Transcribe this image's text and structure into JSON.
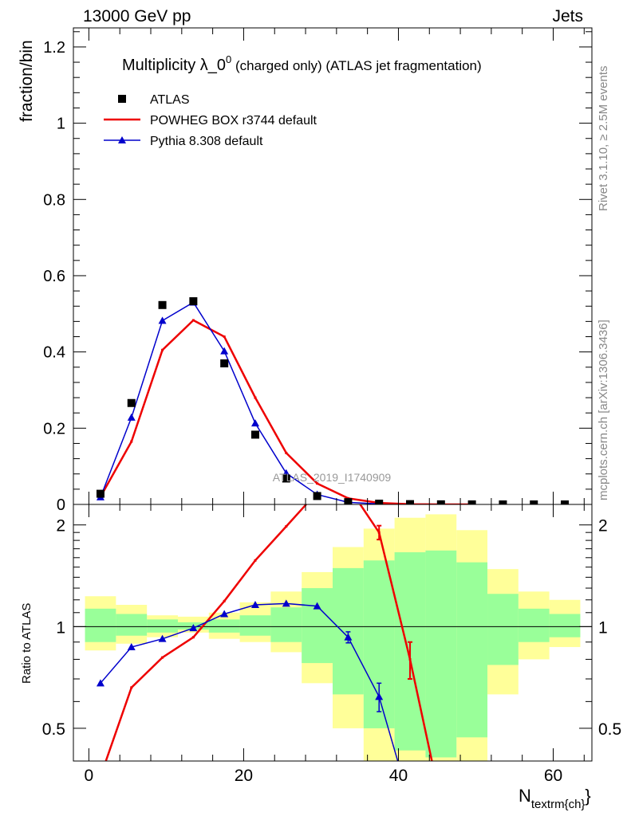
{
  "header": {
    "left": "13000 GeV pp",
    "right": "Jets"
  },
  "side_labels": {
    "rivet": "Rivet 3.1.10, ≥ 2.5M events",
    "mcplots": "mcplots.cern.ch [arXiv:1306.3436]"
  },
  "watermark": "ATLAS_2019_I1740909",
  "colors": {
    "powheg": "#ee0000",
    "pythia": "#0000cc",
    "band_outer": "#ffff99",
    "band_inner": "#99ff99"
  },
  "chart_data": [
    {
      "type": "scatter",
      "panel": "main",
      "title": "Multiplicity λ_0⁰ (charged only) (ATLAS jet fragmentation)",
      "title_main": "Multiplicity λ_0",
      "title_sup": "0",
      "title_rest": " (charged only) (ATLAS jet fragmentation)",
      "ylabel": "fraction/bin",
      "xlim": [
        -2,
        65
      ],
      "ylim": [
        0,
        1.25
      ],
      "yticks": [
        0,
        0.2,
        0.4,
        0.6,
        0.8,
        1,
        1.2
      ],
      "ytick_labels": [
        "0",
        "0.2",
        "0.4",
        "0.6",
        "0.8",
        "1",
        "1.2"
      ],
      "legend_position": "top-left",
      "series": [
        {
          "name": "ATLAS",
          "style": "markers",
          "x": [
            1.5,
            5.5,
            9.5,
            13.5,
            17.5,
            21.5,
            25.5,
            29.5,
            33.5,
            37.5,
            41.5,
            45.5,
            49.5,
            53.5,
            57.5,
            61.5
          ],
          "y": [
            0.028,
            0.266,
            0.523,
            0.533,
            0.37,
            0.183,
            0.068,
            0.022,
            0.006,
            0.002,
            0.0008,
            0.0003,
            0.0001,
            4e-05,
            1e-05,
            5e-06
          ]
        },
        {
          "name": "POWHEG BOX r3744 default",
          "style": "line",
          "x": [
            1.5,
            5.5,
            9.5,
            13.5,
            17.5,
            21.5,
            25.5,
            29.5,
            33.5,
            37.5,
            41.5,
            45.5,
            49.5
          ],
          "y": [
            0.02,
            0.165,
            0.405,
            0.483,
            0.44,
            0.28,
            0.135,
            0.055,
            0.016,
            0.004,
            0.0007,
            0.0001,
            2e-05
          ]
        },
        {
          "name": "Pythia 8.308 default",
          "style": "line-triangles",
          "x": [
            1.5,
            5.5,
            9.5,
            13.5,
            17.5,
            21.5,
            25.5,
            29.5,
            33.5,
            37.5
          ],
          "y": [
            0.019,
            0.228,
            0.482,
            0.53,
            0.402,
            0.213,
            0.082,
            0.026,
            0.0055,
            0.0013
          ]
        }
      ]
    },
    {
      "type": "line",
      "panel": "ratio",
      "ylabel": "Ratio to ATLAS",
      "xlabel": "N",
      "xlabel_sub": "textrm{ch}",
      "xlim": [
        -2,
        65
      ],
      "ylim": [
        0.4,
        2.3
      ],
      "log_y": true,
      "xticks": [
        0,
        20,
        40,
        60
      ],
      "xtick_labels": [
        "0",
        "20",
        "40",
        "60"
      ],
      "yticks": [
        0.5,
        1,
        2
      ],
      "ytick_labels": [
        "0.5",
        "1",
        "2"
      ],
      "reference_line": 1,
      "bins": [
        [
          -0.5,
          3.5
        ],
        [
          3.5,
          7.5
        ],
        [
          7.5,
          11.5
        ],
        [
          11.5,
          15.5
        ],
        [
          15.5,
          19.5
        ],
        [
          19.5,
          23.5
        ],
        [
          23.5,
          27.5
        ],
        [
          27.5,
          31.5
        ],
        [
          31.5,
          35.5
        ],
        [
          35.5,
          39.5
        ],
        [
          39.5,
          43.5
        ],
        [
          43.5,
          47.5
        ],
        [
          47.5,
          51.5
        ],
        [
          51.5,
          55.5
        ],
        [
          55.5,
          59.5
        ],
        [
          59.5,
          63.5
        ]
      ],
      "band_outer": [
        [
          0.85,
          1.23
        ],
        [
          0.89,
          1.16
        ],
        [
          0.93,
          1.08
        ],
        [
          0.96,
          1.07
        ],
        [
          0.92,
          1.1
        ],
        [
          0.9,
          1.18
        ],
        [
          0.84,
          1.27
        ],
        [
          0.68,
          1.45
        ],
        [
          0.5,
          1.72
        ],
        [
          0.32,
          1.95
        ],
        [
          0.3,
          2.1
        ],
        [
          0.28,
          2.15
        ],
        [
          0.36,
          1.93
        ],
        [
          0.63,
          1.48
        ],
        [
          0.8,
          1.27
        ],
        [
          0.87,
          1.2
        ]
      ],
      "band_inner": [
        [
          0.9,
          1.13
        ],
        [
          0.94,
          1.09
        ],
        [
          0.96,
          1.05
        ],
        [
          0.98,
          1.03
        ],
        [
          0.96,
          1.05
        ],
        [
          0.94,
          1.08
        ],
        [
          0.9,
          1.14
        ],
        [
          0.78,
          1.3
        ],
        [
          0.63,
          1.49
        ],
        [
          0.5,
          1.57
        ],
        [
          0.43,
          1.66
        ],
        [
          0.41,
          1.68
        ],
        [
          0.47,
          1.55
        ],
        [
          0.77,
          1.25
        ],
        [
          0.9,
          1.13
        ],
        [
          0.93,
          1.09
        ]
      ],
      "series": [
        {
          "name": "POWHEG BOX r3744 default",
          "x": [
            1.5,
            5.5,
            9.5,
            13.5,
            17.5,
            21.5,
            25.5,
            29.5,
            33.5,
            37.5,
            41.5,
            45.5
          ],
          "y": [
            0.36,
            0.66,
            0.81,
            0.93,
            1.19,
            1.57,
            1.98,
            2.5,
            2.6,
            1.9,
            0.8,
            0.3
          ],
          "errors": [
            0,
            0,
            0,
            0,
            0,
            0,
            0,
            0,
            0,
            0.09,
            0.1,
            0
          ]
        },
        {
          "name": "Pythia 8.308 default",
          "x": [
            1.5,
            5.5,
            9.5,
            13.5,
            17.5,
            21.5,
            25.5,
            29.5,
            33.5,
            37.5,
            41.5
          ],
          "y": [
            0.68,
            0.87,
            0.92,
            0.99,
            1.09,
            1.16,
            1.17,
            1.15,
            0.93,
            0.62,
            0.3
          ],
          "errors": [
            0,
            0,
            0,
            0,
            0,
            0,
            0,
            0,
            0.035,
            0.06,
            0
          ]
        }
      ]
    }
  ]
}
